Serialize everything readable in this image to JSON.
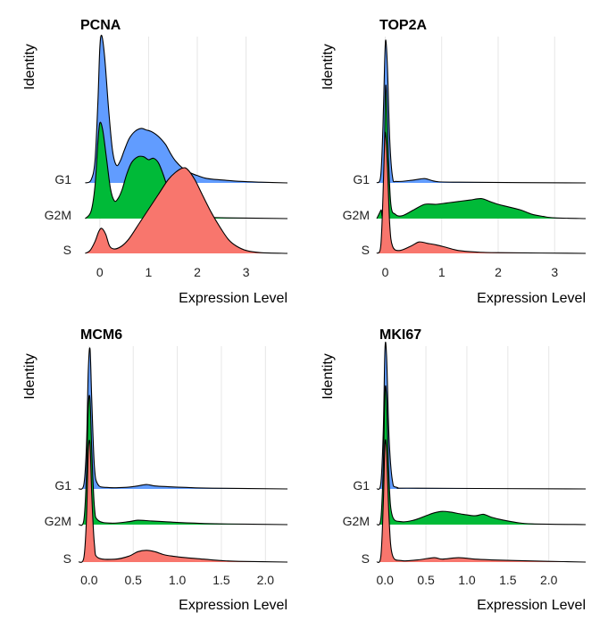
{
  "colors": {
    "G1": "#619CFF",
    "G2M": "#00BA38",
    "S": "#F8766D"
  },
  "chart_data": [
    {
      "type": "ridgeline",
      "title": "PCNA",
      "xlabel": "Expression Level",
      "ylabel": "Identity",
      "xlim": [
        -0.4,
        3.85
      ],
      "xticks": [
        0,
        1,
        2,
        3
      ],
      "xtick_labels": [
        "0",
        "1",
        "2",
        "3"
      ],
      "grid": true,
      "categories": [
        "G1",
        "G2M",
        "S"
      ],
      "series": [
        {
          "name": "G1",
          "density": [
            [
              -0.3,
              0
            ],
            [
              -0.18,
              0.02
            ],
            [
              -0.1,
              0.15
            ],
            [
              -0.04,
              0.55
            ],
            [
              0.0,
              0.92
            ],
            [
              0.04,
              1.0
            ],
            [
              0.1,
              0.85
            ],
            [
              0.18,
              0.5
            ],
            [
              0.26,
              0.22
            ],
            [
              0.34,
              0.12
            ],
            [
              0.42,
              0.15
            ],
            [
              0.5,
              0.22
            ],
            [
              0.6,
              0.3
            ],
            [
              0.72,
              0.35
            ],
            [
              0.85,
              0.37
            ],
            [
              0.95,
              0.36
            ],
            [
              1.05,
              0.35
            ],
            [
              1.15,
              0.33
            ],
            [
              1.25,
              0.3
            ],
            [
              1.35,
              0.26
            ],
            [
              1.45,
              0.2
            ],
            [
              1.55,
              0.15
            ],
            [
              1.7,
              0.1
            ],
            [
              1.85,
              0.07
            ],
            [
              2.0,
              0.05
            ],
            [
              2.2,
              0.03
            ],
            [
              2.5,
              0.02
            ],
            [
              2.9,
              0.01
            ],
            [
              3.3,
              0.005
            ],
            [
              3.85,
              0
            ]
          ]
        },
        {
          "name": "G2M",
          "density": [
            [
              -0.3,
              0
            ],
            [
              -0.18,
              0.05
            ],
            [
              -0.1,
              0.22
            ],
            [
              -0.04,
              0.52
            ],
            [
              0.0,
              0.65
            ],
            [
              0.06,
              0.6
            ],
            [
              0.14,
              0.4
            ],
            [
              0.22,
              0.2
            ],
            [
              0.3,
              0.12
            ],
            [
              0.38,
              0.14
            ],
            [
              0.46,
              0.2
            ],
            [
              0.55,
              0.3
            ],
            [
              0.65,
              0.38
            ],
            [
              0.78,
              0.42
            ],
            [
              0.9,
              0.42
            ],
            [
              1.0,
              0.4
            ],
            [
              1.1,
              0.41
            ],
            [
              1.2,
              0.38
            ],
            [
              1.3,
              0.3
            ],
            [
              1.4,
              0.2
            ],
            [
              1.5,
              0.12
            ],
            [
              1.6,
              0.07
            ],
            [
              1.75,
              0.04
            ],
            [
              1.9,
              0.02
            ],
            [
              2.2,
              0.01
            ],
            [
              2.6,
              0.005
            ],
            [
              3.85,
              0
            ]
          ]
        },
        {
          "name": "S",
          "density": [
            [
              -0.3,
              0
            ],
            [
              -0.2,
              0.02
            ],
            [
              -0.1,
              0.08
            ],
            [
              -0.02,
              0.15
            ],
            [
              0.04,
              0.17
            ],
            [
              0.12,
              0.13
            ],
            [
              0.2,
              0.05
            ],
            [
              0.3,
              0.03
            ],
            [
              0.45,
              0.05
            ],
            [
              0.6,
              0.1
            ],
            [
              0.8,
              0.2
            ],
            [
              1.0,
              0.3
            ],
            [
              1.2,
              0.4
            ],
            [
              1.4,
              0.5
            ],
            [
              1.55,
              0.55
            ],
            [
              1.7,
              0.58
            ],
            [
              1.8,
              0.57
            ],
            [
              1.95,
              0.5
            ],
            [
              2.1,
              0.4
            ],
            [
              2.3,
              0.27
            ],
            [
              2.5,
              0.16
            ],
            [
              2.65,
              0.09
            ],
            [
              2.8,
              0.05
            ],
            [
              3.0,
              0.02
            ],
            [
              3.3,
              0.005
            ],
            [
              3.85,
              0
            ]
          ]
        }
      ]
    },
    {
      "type": "ridgeline",
      "title": "TOP2A",
      "xlabel": "Expression Level",
      "ylabel": "Identity",
      "xlim": [
        -0.15,
        3.55
      ],
      "xticks": [
        0,
        1,
        2,
        3
      ],
      "xtick_labels": [
        "0",
        "1",
        "2",
        "3"
      ],
      "grid": true,
      "categories": [
        "G1",
        "G2M",
        "S"
      ],
      "series": [
        {
          "name": "G1",
          "density": [
            [
              -0.15,
              0
            ],
            [
              -0.08,
              0.05
            ],
            [
              -0.04,
              0.4
            ],
            [
              -0.01,
              0.85
            ],
            [
              0.01,
              1.0
            ],
            [
              0.04,
              0.8
            ],
            [
              0.08,
              0.3
            ],
            [
              0.13,
              0.04
            ],
            [
              0.2,
              0.01
            ],
            [
              0.5,
              0.02
            ],
            [
              0.7,
              0.03
            ],
            [
              0.9,
              0.01
            ],
            [
              1.3,
              0.005
            ],
            [
              3.55,
              0
            ]
          ]
        },
        {
          "name": "G2M",
          "density": [
            [
              -0.15,
              0
            ],
            [
              -0.1,
              0.04
            ],
            [
              -0.07,
              0.06
            ],
            [
              -0.05,
              0.03
            ],
            [
              -0.02,
              0.3
            ],
            [
              0.0,
              0.85
            ],
            [
              0.02,
              0.9
            ],
            [
              0.05,
              0.5
            ],
            [
              0.1,
              0.1
            ],
            [
              0.18,
              0.03
            ],
            [
              0.3,
              0.02
            ],
            [
              0.5,
              0.06
            ],
            [
              0.7,
              0.1
            ],
            [
              0.9,
              0.1
            ],
            [
              1.1,
              0.11
            ],
            [
              1.3,
              0.12
            ],
            [
              1.5,
              0.13
            ],
            [
              1.7,
              0.14
            ],
            [
              1.85,
              0.12
            ],
            [
              2.0,
              0.1
            ],
            [
              2.2,
              0.08
            ],
            [
              2.4,
              0.06
            ],
            [
              2.6,
              0.03
            ],
            [
              2.8,
              0.015
            ],
            [
              3.0,
              0.005
            ],
            [
              3.55,
              0
            ]
          ]
        },
        {
          "name": "S",
          "density": [
            [
              -0.15,
              0
            ],
            [
              -0.08,
              0.05
            ],
            [
              -0.04,
              0.4
            ],
            [
              -0.01,
              0.8
            ],
            [
              0.01,
              0.82
            ],
            [
              0.04,
              0.6
            ],
            [
              0.08,
              0.2
            ],
            [
              0.13,
              0.05
            ],
            [
              0.25,
              0.02
            ],
            [
              0.45,
              0.05
            ],
            [
              0.6,
              0.08
            ],
            [
              0.75,
              0.07
            ],
            [
              0.9,
              0.06
            ],
            [
              1.1,
              0.04
            ],
            [
              1.3,
              0.02
            ],
            [
              1.6,
              0.01
            ],
            [
              2.0,
              0.005
            ],
            [
              3.55,
              0
            ]
          ]
        }
      ]
    },
    {
      "type": "ridgeline",
      "title": "MCM6",
      "xlabel": "Expression Level",
      "ylabel": "Identity",
      "xlim": [
        -0.12,
        2.25
      ],
      "xticks": [
        0,
        0.5,
        1,
        1.5,
        2
      ],
      "xtick_labels": [
        "0.0",
        "0.5",
        "1.0",
        "1.5",
        "2.0"
      ],
      "grid": true,
      "categories": [
        "G1",
        "G2M",
        "S"
      ],
      "series": [
        {
          "name": "G1",
          "density": [
            [
              -0.12,
              0
            ],
            [
              -0.06,
              0.03
            ],
            [
              -0.03,
              0.3
            ],
            [
              -0.01,
              0.8
            ],
            [
              0.01,
              0.95
            ],
            [
              0.03,
              0.6
            ],
            [
              0.06,
              0.15
            ],
            [
              0.1,
              0.03
            ],
            [
              0.2,
              0.01
            ],
            [
              0.4,
              0.01
            ],
            [
              0.55,
              0.02
            ],
            [
              0.65,
              0.03
            ],
            [
              0.75,
              0.02
            ],
            [
              0.9,
              0.015
            ],
            [
              1.1,
              0.01
            ],
            [
              1.4,
              0.005
            ],
            [
              2.25,
              0
            ]
          ]
        },
        {
          "name": "G2M",
          "density": [
            [
              -0.12,
              0
            ],
            [
              -0.06,
              0.03
            ],
            [
              -0.03,
              0.35
            ],
            [
              -0.01,
              0.8
            ],
            [
              0.01,
              0.85
            ],
            [
              0.03,
              0.5
            ],
            [
              0.06,
              0.12
            ],
            [
              0.1,
              0.03
            ],
            [
              0.25,
              0.01
            ],
            [
              0.45,
              0.02
            ],
            [
              0.55,
              0.03
            ],
            [
              0.7,
              0.025
            ],
            [
              0.85,
              0.02
            ],
            [
              1.0,
              0.015
            ],
            [
              1.2,
              0.01
            ],
            [
              1.5,
              0.005
            ],
            [
              2.25,
              0
            ]
          ]
        },
        {
          "name": "S",
          "density": [
            [
              -0.12,
              0
            ],
            [
              -0.06,
              0.03
            ],
            [
              -0.03,
              0.3
            ],
            [
              -0.01,
              0.75
            ],
            [
              0.01,
              0.8
            ],
            [
              0.03,
              0.45
            ],
            [
              0.06,
              0.12
            ],
            [
              0.1,
              0.03
            ],
            [
              0.3,
              0.02
            ],
            [
              0.45,
              0.04
            ],
            [
              0.55,
              0.07
            ],
            [
              0.65,
              0.08
            ],
            [
              0.75,
              0.07
            ],
            [
              0.85,
              0.05
            ],
            [
              0.95,
              0.04
            ],
            [
              1.1,
              0.03
            ],
            [
              1.3,
              0.02
            ],
            [
              1.5,
              0.01
            ],
            [
              1.7,
              0.005
            ],
            [
              2.25,
              0
            ]
          ]
        }
      ]
    },
    {
      "type": "ridgeline",
      "title": "MKI67",
      "xlabel": "Expression Level",
      "ylabel": "Identity",
      "xlim": [
        -0.1,
        2.45
      ],
      "xticks": [
        0,
        0.5,
        1,
        1.5,
        2
      ],
      "xtick_labels": [
        "0.0",
        "0.5",
        "1.0",
        "1.5",
        "2.0"
      ],
      "grid": true,
      "categories": [
        "G1",
        "G2M",
        "S"
      ],
      "series": [
        {
          "name": "G1",
          "density": [
            [
              -0.1,
              0
            ],
            [
              -0.05,
              0.04
            ],
            [
              -0.02,
              0.4
            ],
            [
              0.0,
              0.95
            ],
            [
              0.02,
              0.9
            ],
            [
              0.05,
              0.35
            ],
            [
              0.09,
              0.06
            ],
            [
              0.15,
              0.01
            ],
            [
              0.4,
              0.005
            ],
            [
              2.45,
              0
            ]
          ]
        },
        {
          "name": "G2M",
          "density": [
            [
              -0.1,
              0
            ],
            [
              -0.05,
              0.04
            ],
            [
              -0.02,
              0.4
            ],
            [
              0.0,
              0.9
            ],
            [
              0.02,
              0.85
            ],
            [
              0.05,
              0.3
            ],
            [
              0.09,
              0.06
            ],
            [
              0.2,
              0.02
            ],
            [
              0.35,
              0.03
            ],
            [
              0.5,
              0.06
            ],
            [
              0.6,
              0.08
            ],
            [
              0.7,
              0.09
            ],
            [
              0.8,
              0.085
            ],
            [
              0.95,
              0.07
            ],
            [
              1.1,
              0.06
            ],
            [
              1.2,
              0.07
            ],
            [
              1.3,
              0.05
            ],
            [
              1.45,
              0.03
            ],
            [
              1.6,
              0.015
            ],
            [
              1.8,
              0.005
            ],
            [
              2.45,
              0
            ]
          ]
        },
        {
          "name": "S",
          "density": [
            [
              -0.1,
              0
            ],
            [
              -0.05,
              0.04
            ],
            [
              -0.02,
              0.4
            ],
            [
              0.0,
              0.8
            ],
            [
              0.02,
              0.75
            ],
            [
              0.05,
              0.3
            ],
            [
              0.09,
              0.05
            ],
            [
              0.2,
              0.01
            ],
            [
              0.4,
              0.015
            ],
            [
              0.6,
              0.03
            ],
            [
              0.7,
              0.02
            ],
            [
              0.9,
              0.03
            ],
            [
              1.1,
              0.02
            ],
            [
              1.3,
              0.015
            ],
            [
              1.6,
              0.01
            ],
            [
              2.0,
              0.005
            ],
            [
              2.45,
              0
            ]
          ]
        }
      ]
    }
  ]
}
